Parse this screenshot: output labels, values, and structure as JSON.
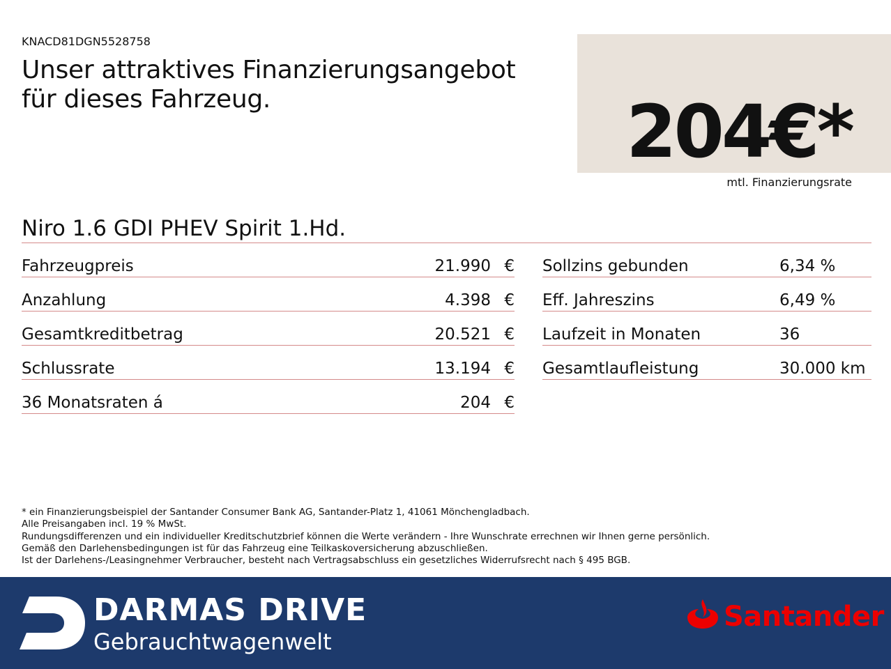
{
  "header": {
    "vin": "KNACD81DGN5528758",
    "headline": [
      "Unser attraktives Finanzierungsangebot",
      "für dieses Fahrzeug."
    ],
    "price": "204€*",
    "price_caption": "mtl. Finanzierungsrate"
  },
  "model": "Niro 1.6 GDI PHEV Spirit 1.Hd.",
  "left_table": {
    "rows": [
      [
        "Fahrzeugpreis",
        "21.990",
        "€"
      ],
      [
        "Anzahlung",
        "4.398",
        "€"
      ],
      [
        "Gesamtkreditbetrag",
        "20.521",
        "€"
      ],
      [
        "Schlussrate",
        "13.194",
        "€"
      ],
      [
        "36 Monatsraten á",
        "204",
        "€"
      ]
    ]
  },
  "right_table": {
    "rows": [
      [
        "Sollzins gebunden",
        "6,34 %"
      ],
      [
        "Eff. Jahreszins",
        "6,49 %"
      ],
      [
        "Laufzeit in Monaten",
        "36"
      ],
      [
        "Gesamtlaufleistung",
        "30.000 km"
      ]
    ]
  },
  "notes": [
    "* ein Finanzierungsbeispiel der Santander Consumer Bank AG, Santander-Platz 1, 41061 Mönchengladbach.",
    "Alle Preisangaben incl. 19 % MwSt.",
    "Rundungsdifferenzen und ein individueller Kreditschutzbrief können die Werte verändern - Ihre Wunschrate errechnen wir Ihnen gerne persönlich.",
    "Gemäß den Darlehensbedingungen ist für das Fahrzeug eine Teilkaskoversicherung abzuschließen.",
    "Ist der Darlehens-/Leasingnehmer Verbraucher, besteht nach Vertragsabschluss ein gesetzliches Widerrufsrecht nach § 495 BGB."
  ],
  "footer": {
    "brand": "DARMAS DRIVE",
    "brand_sub": "Gebrauchtwagenwelt",
    "partner": "Santander"
  }
}
